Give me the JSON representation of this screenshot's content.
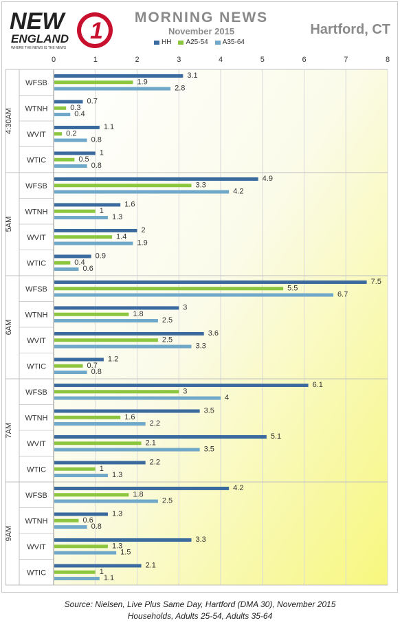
{
  "header": {
    "logo_text_main": "NEW",
    "logo_text_sub": "ENGLAND",
    "logo_number": "1",
    "logo_tagline": "WHERE THE NEWS IS THE NEWS",
    "title": "MORNING NEWS",
    "subtitle": "November 2015",
    "market": "Hartford, CT"
  },
  "colors": {
    "HH": "#3b6a9e",
    "A25-54": "#8cc63f",
    "A35-64": "#6fa8c8",
    "grid": "#d9d9d9",
    "logo_red": "#c8102e"
  },
  "chart_data": {
    "type": "bar",
    "orientation": "horizontal",
    "xlim": [
      0,
      8
    ],
    "xticks": [
      "0",
      "1",
      "2",
      "3",
      "4",
      "5",
      "6",
      "7",
      "8"
    ],
    "grid": true,
    "legend": "top",
    "series_names": [
      "HH",
      "A25-54",
      "A35-64"
    ],
    "groups": [
      {
        "name": "4:30AM",
        "stations": [
          {
            "station": "WFSB",
            "values": [
              3.1,
              1.9,
              2.8
            ]
          },
          {
            "station": "WTNH",
            "values": [
              0.7,
              0.3,
              0.4
            ]
          },
          {
            "station": "WVIT",
            "values": [
              1.1,
              0.2,
              0.8
            ]
          },
          {
            "station": "WTIC",
            "values": [
              1,
              0.5,
              0.8
            ]
          }
        ]
      },
      {
        "name": "5AM",
        "stations": [
          {
            "station": "WFSB",
            "values": [
              4.9,
              3.3,
              4.2
            ]
          },
          {
            "station": "WTNH",
            "values": [
              1.6,
              1,
              1.3
            ]
          },
          {
            "station": "WVIT",
            "values": [
              2,
              1.4,
              1.9
            ]
          },
          {
            "station": "WTIC",
            "values": [
              0.9,
              0.4,
              0.6
            ]
          }
        ]
      },
      {
        "name": "6AM",
        "stations": [
          {
            "station": "WFSB",
            "values": [
              7.5,
              5.5,
              6.7
            ]
          },
          {
            "station": "WTNH",
            "values": [
              3,
              1.8,
              2.5
            ]
          },
          {
            "station": "WVIT",
            "values": [
              3.6,
              2.5,
              3.3
            ]
          },
          {
            "station": "WTIC",
            "values": [
              1.2,
              0.7,
              0.8
            ]
          }
        ]
      },
      {
        "name": "7AM",
        "stations": [
          {
            "station": "WFSB",
            "values": [
              6.1,
              3,
              4
            ]
          },
          {
            "station": "WTNH",
            "values": [
              3.5,
              1.6,
              2.2
            ]
          },
          {
            "station": "WVIT",
            "values": [
              5.1,
              2.1,
              3.5
            ]
          },
          {
            "station": "WTIC",
            "values": [
              2.2,
              1,
              1.3
            ]
          }
        ]
      },
      {
        "name": "9AM",
        "stations": [
          {
            "station": "WFSB",
            "values": [
              4.2,
              1.8,
              2.5
            ]
          },
          {
            "station": "WTNH",
            "values": [
              1.3,
              0.6,
              0.8
            ]
          },
          {
            "station": "WVIT",
            "values": [
              3.3,
              1.3,
              1.5
            ]
          },
          {
            "station": "WTIC",
            "values": [
              2.1,
              1,
              1.1
            ]
          }
        ]
      }
    ]
  },
  "footer": {
    "source_line1": "Source: Nielsen, Live Plus Same Day, Hartford (DMA 30), November 2015",
    "source_line2": "Households, Adults 25-54, Adults 35-64"
  }
}
